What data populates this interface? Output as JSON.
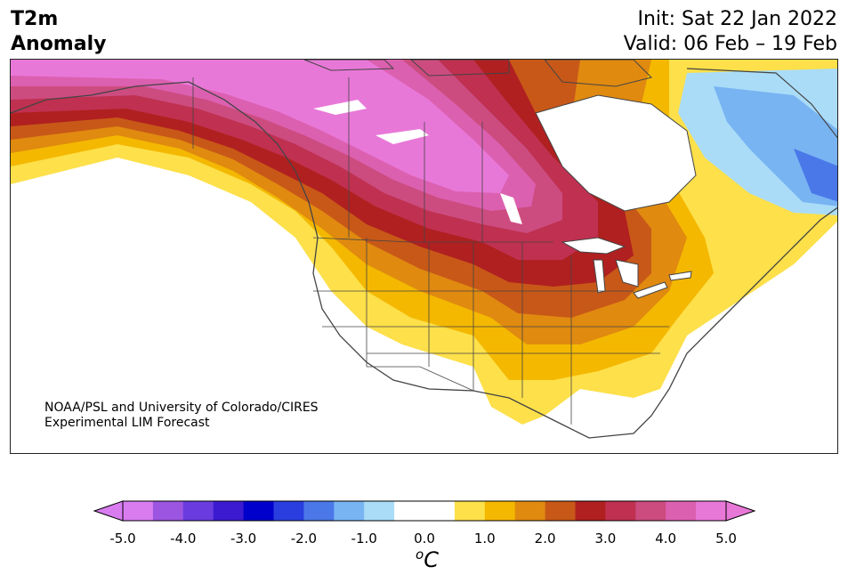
{
  "header": {
    "title_line1": "T2m",
    "title_line2": "Anomaly",
    "init": "Init: Sat 22 Jan 2022",
    "valid": "Valid: 06 Feb – 19 Feb"
  },
  "map": {
    "region": "North America",
    "variable": "2-meter temperature anomaly",
    "credit_line1": "NOAA/PSL and University of Colorado/CIRES",
    "credit_line2": "Experimental LIM Forecast"
  },
  "colorbar": {
    "unit_base": "C",
    "unit_sup": "o",
    "ticks": [
      "-5.0",
      "-4.0",
      "-3.0",
      "-2.0",
      "-1.0",
      "0.0",
      "1.0",
      "2.0",
      "3.0",
      "4.0",
      "5.0"
    ],
    "colors": [
      "#d87cf0",
      "#9b55e0",
      "#6a3ce0",
      "#3b1ad0",
      "#0000cc",
      "#2a3ee0",
      "#4a78e8",
      "#78b4f2",
      "#aadcf8",
      "#ffffff",
      "#ffffff",
      "#fde04a",
      "#f4b800",
      "#e08a10",
      "#c85818",
      "#b02020",
      "#c03050",
      "#cc4c80",
      "#dc60b0",
      "#e878d8"
    ],
    "under_color": "#d87cf0",
    "over_color": "#e878d8"
  }
}
